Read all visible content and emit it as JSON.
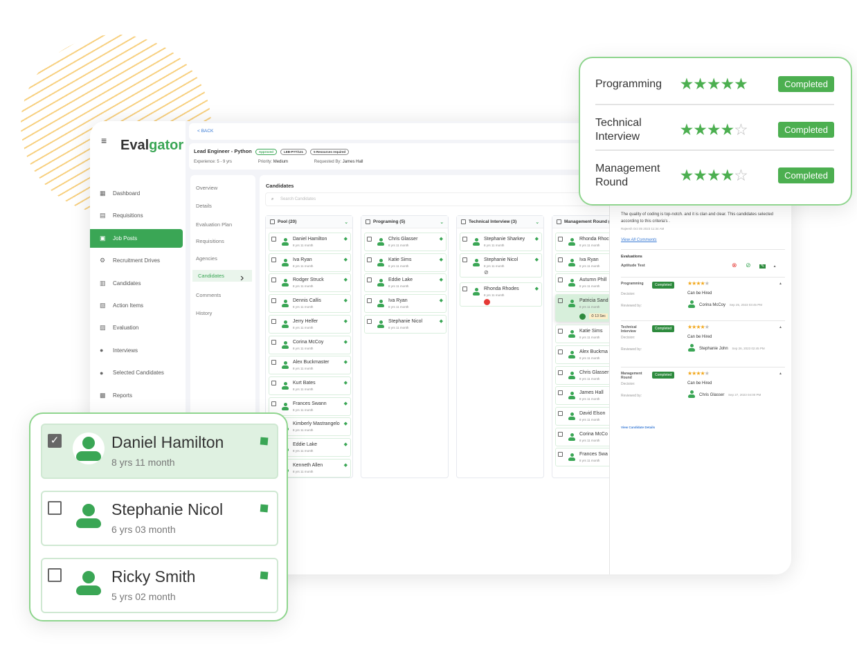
{
  "app": {
    "logo_prefix": "Eval",
    "logo_suffix": "gator",
    "back": "< BACK"
  },
  "sidebar": {
    "items": [
      {
        "label": "Dashboard",
        "icon": "▦"
      },
      {
        "label": "Requisitions",
        "icon": "▤"
      },
      {
        "label": "Job Posts",
        "icon": "▣",
        "active": true
      },
      {
        "label": "Recruitment Drives",
        "icon": "⚙"
      },
      {
        "label": "Candidates",
        "icon": "▥"
      },
      {
        "label": "Action Items",
        "icon": "▧"
      },
      {
        "label": "Evaluation",
        "icon": "▨"
      },
      {
        "label": "Interviews",
        "icon": "●"
      },
      {
        "label": "Selected Candidates",
        "icon": "●"
      },
      {
        "label": "Reports",
        "icon": "▩"
      }
    ]
  },
  "job": {
    "title": "Lead Engineer - Python",
    "status": "Approved",
    "code": "LEB-PYT/121",
    "resources": "5 Resources required",
    "experience_label": "Experience:",
    "experience": "5 - 9 yrs",
    "priority_label": "Priority:",
    "priority": "Medium",
    "requested_label": "Requested By:",
    "requested_by": "James Hall"
  },
  "subnav": [
    "Overview",
    "Details",
    "Evaluation Plan",
    "Requisitions",
    "Agencies",
    "Candidates",
    "Comments",
    "History"
  ],
  "candidates": {
    "title": "Candidates",
    "search_placeholder": "Search Candidates",
    "columns": [
      {
        "title": "Pool (20)",
        "items": [
          "Daniel Hamilton",
          "Iva Ryan",
          "Rodger Struck",
          "Dennis Callis",
          "Jerry Helfer",
          "Corina McCoy",
          "Alex Buckmaster",
          "Kurt Bates",
          "Frances Swann",
          "Kimberly Mastrangelo",
          "Eddie Lake",
          "Kenneth Allen"
        ]
      },
      {
        "title": "Programing (5)",
        "items": [
          "Chris Glasser",
          "Katie Sims",
          "Eddie Lake",
          "Iva Ryan",
          "Stephanie Nicol"
        ]
      },
      {
        "title": "Technical Interview (3)",
        "items": [
          "Stephanie Sharkey",
          "Stephanie Nicol",
          "Rhonda Rhodes"
        ]
      },
      {
        "title": "Management Round (",
        "items": [
          "Rhonda Rhoc",
          "Iva Ryan",
          "Autumn Phill",
          "Patricia Sand",
          "Katie Sims",
          "Alex Buckma",
          "Chris Glasser",
          "James Hall",
          "David Elson",
          "Corina McCo",
          "Frances Swa"
        ]
      }
    ],
    "experience": "8 yrs 11 month",
    "timer": "13 Sec"
  },
  "details": {
    "comments_title": "Comments",
    "comment": "The quality of coding is top-notch. and it is clan and clear. This candidates selected according to this criteria's .",
    "comment_author": "Rajeesh",
    "comment_date": "Oct 05 2023 11:34 AM",
    "view_all": "View All Comments",
    "evaluations_title": "Evaluations",
    "aptitude": "Aptitude Test",
    "decision_label": "Decision:",
    "reviewed_label": "Reviewed by:",
    "evaluations": [
      {
        "name": "Programming",
        "status": "Completed",
        "rating": 4,
        "decision": "Can be Hired",
        "reviewer": "Corina McCoy",
        "date": "Sep 25, 2023 03:45 PM"
      },
      {
        "name": "Technical Interview",
        "status": "Completed",
        "rating": 4,
        "decision": "Can be Hired",
        "reviewer": "Stephanie John",
        "date": "Sep 26, 2023 02:45 PM"
      },
      {
        "name": "Management Round",
        "status": "Completed",
        "rating": 4,
        "decision": "Can be Hired",
        "reviewer": "Chris Glasser",
        "date": "Sep 27, 2023 04:00 PM"
      }
    ],
    "view_details": "View Candidate Details"
  },
  "ratings_card": [
    {
      "label": "Programming",
      "rating": 5,
      "status": "Completed"
    },
    {
      "label": "Technical Interview",
      "rating": 4,
      "status": "Completed"
    },
    {
      "label": "Management Round",
      "rating": 4,
      "status": "Completed"
    }
  ],
  "candidate_card": [
    {
      "name": "Daniel Hamilton",
      "experience": "8 yrs 11 month",
      "checked": true
    },
    {
      "name": "Stephanie Nicol",
      "experience": "6 yrs 03 month",
      "checked": false
    },
    {
      "name": "Ricky Smith",
      "experience": "5 yrs 02 month",
      "checked": false
    }
  ],
  "colors": {
    "accent": "#3aa655",
    "completed": "#4caf50",
    "star": "#f2a71b"
  }
}
